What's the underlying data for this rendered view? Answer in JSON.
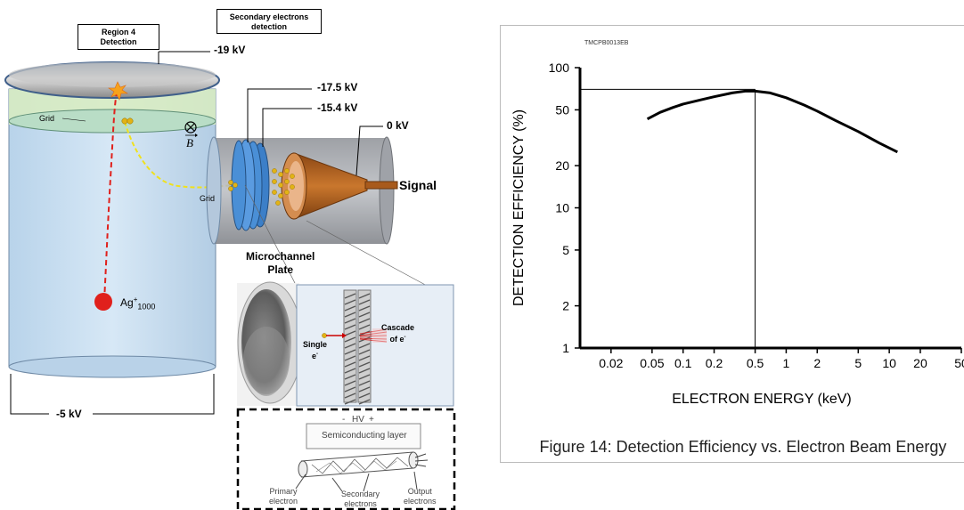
{
  "diagram": {
    "region_box": "Region 4\nDetection",
    "secondary_box": "Secondary electrons\ndetection",
    "v_top": "-19 kV",
    "v_175": "-17.5 kV",
    "v_154": "-15.4 kV",
    "v_0": "0 kV",
    "v_bottom": "-5 kV",
    "grid_left": "Grid",
    "grid_mid": "Grid",
    "bfield": "B",
    "signal": "Signal",
    "mcp_label": "Microchannel\nPlate",
    "ag_base": "Ag",
    "ag_sup": "+",
    "ag_sub": "1000",
    "single_label": "Single\ne",
    "cascade_label": "Cascade\nof e",
    "hv_minus": "-",
    "hv_label": "HV",
    "hv_plus": "+",
    "semi_layer": "Semiconducting layer",
    "primary": "Primary\nelectron",
    "secondary": "Secondary\nelectrons",
    "output": "Output\nelectrons",
    "colors": {
      "red_path": "#e0201c",
      "yellow_path": "#f0e11c",
      "mcp_blue": "#4a8fd6",
      "cone": "#b8641f",
      "tank": "#c7dff2"
    }
  },
  "chart_data": {
    "type": "line",
    "code": "TMCPB0013EB",
    "caption": "Figure 14: Detection Efficiency vs. Electron Beam Energy",
    "xlabel": "ELECTRON ENERGY (keV)",
    "ylabel": "DETECTION EFFICIENCY (%)",
    "xscale": "log",
    "yscale": "log",
    "xlim": [
      0.01,
      50
    ],
    "ylim": [
      1,
      100
    ],
    "xticks": [
      "0.02",
      "0.05",
      "0.1",
      "0.2",
      "0.5",
      "1",
      "2",
      "5",
      "10",
      "20",
      "50"
    ],
    "xtick_values": [
      0.02,
      0.05,
      0.1,
      0.2,
      0.5,
      1,
      2,
      5,
      10,
      20,
      50
    ],
    "yticks": [
      "1",
      "2",
      "5",
      "10",
      "20",
      "50",
      "100"
    ],
    "ytick_values": [
      1,
      2,
      5,
      10,
      20,
      50,
      100
    ],
    "series": [
      {
        "x": [
          0.045,
          0.06,
          0.08,
          0.1,
          0.15,
          0.2,
          0.3,
          0.4,
          0.5,
          0.7,
          1,
          1.5,
          2,
          3,
          5,
          8,
          12
        ],
        "y": [
          43,
          48,
          52,
          55,
          59,
          62,
          66,
          68,
          68,
          66,
          61,
          54,
          49,
          42,
          35,
          29,
          25
        ]
      }
    ],
    "reference_lines": {
      "peak_y": 70,
      "peak_x": 0.5
    }
  }
}
